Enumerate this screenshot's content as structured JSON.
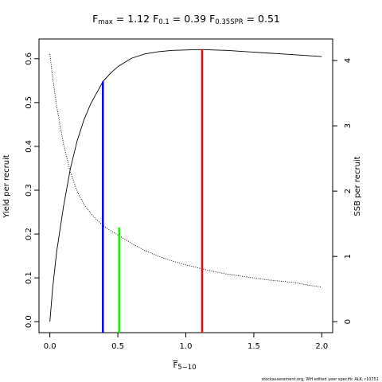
{
  "chart_data": {
    "type": "line",
    "title": {
      "fmax": {
        "base": "F",
        "sub": "max",
        "value": "1.12"
      },
      "f01": {
        "base": "F",
        "sub": "0.1",
        "value": "0.39"
      },
      "f35": {
        "base": "F",
        "sub": "0.35SPR",
        "value": "0.51"
      }
    },
    "xlabel": {
      "base": "F",
      "sub": "5−10"
    },
    "ylabel_left": "Yield per recruit",
    "ylabel_right": "SSB per recruit",
    "xlim": [
      -0.08,
      2.08
    ],
    "ylim_left": [
      -0.025,
      0.645
    ],
    "ylim_right": [
      -0.168,
      4.33
    ],
    "x_ticks": [
      "0.0",
      "0.5",
      "1.0",
      "1.5",
      "2.0"
    ],
    "y_ticks_left": [
      "0.0",
      "0.1",
      "0.2",
      "0.3",
      "0.4",
      "0.5",
      "0.6"
    ],
    "y_ticks_right": [
      "0",
      "1",
      "2",
      "3",
      "4"
    ],
    "series": [
      {
        "axis": "left",
        "style": "solid",
        "color": "#000000",
        "x": [
          0,
          0.02,
          0.05,
          0.1,
          0.15,
          0.2,
          0.25,
          0.3,
          0.35,
          0.39,
          0.45,
          0.5,
          0.6,
          0.7,
          0.8,
          0.9,
          1.0,
          1.12,
          1.2,
          1.3,
          1.4,
          1.5,
          1.6,
          1.7,
          1.8,
          1.9,
          2.0
        ],
        "y": [
          0.0,
          0.075,
          0.16,
          0.262,
          0.348,
          0.412,
          0.46,
          0.497,
          0.525,
          0.548,
          0.568,
          0.582,
          0.601,
          0.611,
          0.616,
          0.619,
          0.62,
          0.621,
          0.62,
          0.619,
          0.617,
          0.615,
          0.613,
          0.611,
          0.609,
          0.607,
          0.605
        ]
      },
      {
        "axis": "right",
        "style": "dotted",
        "color": "#000000",
        "x": [
          0,
          0.02,
          0.05,
          0.1,
          0.15,
          0.2,
          0.25,
          0.3,
          0.35,
          0.4,
          0.45,
          0.5,
          0.6,
          0.7,
          0.8,
          0.9,
          1.0,
          1.1,
          1.2,
          1.3,
          1.4,
          1.5,
          1.6,
          1.7,
          1.8,
          1.9,
          2.0
        ],
        "y": [
          4.1,
          3.75,
          3.3,
          2.72,
          2.3,
          2.0,
          1.8,
          1.66,
          1.55,
          1.46,
          1.39,
          1.33,
          1.2,
          1.09,
          1.0,
          0.93,
          0.87,
          0.82,
          0.77,
          0.73,
          0.7,
          0.67,
          0.64,
          0.62,
          0.6,
          0.56,
          0.53
        ]
      }
    ],
    "reference_lines": [
      {
        "label": "F0.1",
        "x": 0.39,
        "y": 0.548,
        "color": "#0000ff"
      },
      {
        "label": "F0.35SPR",
        "x": 0.51,
        "y": 0.215,
        "color": "#00ff00"
      },
      {
        "label": "Fmax",
        "x": 1.12,
        "y": 0.621,
        "color": "#ff0000"
      }
    ],
    "grid": false,
    "footer": "stockassessment.org, WH edited year specific ALK, r10751"
  }
}
